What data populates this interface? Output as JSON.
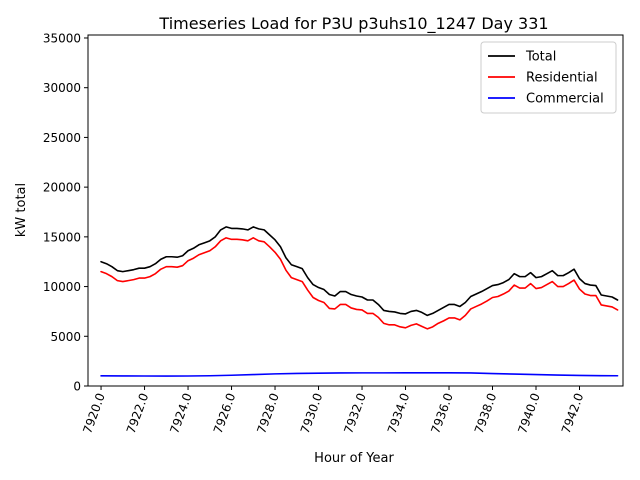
{
  "chart_data": {
    "type": "line",
    "title": "Timeseries Load for P3U p3uhs10_1247  Day 331",
    "xlabel": "Hour of Year",
    "ylabel": "kW total",
    "xlim": [
      7919.4,
      7944.0
    ],
    "ylim": [
      0,
      35300
    ],
    "grid": false,
    "legend_position": "top-right",
    "x_tick_values": [
      7920,
      7922,
      7924,
      7926,
      7928,
      7930,
      7932,
      7934,
      7936,
      7938,
      7940,
      7942
    ],
    "x_tick_labels": [
      "7920.0",
      "7922.0",
      "7924.0",
      "7926.0",
      "7928.0",
      "7930.0",
      "7932.0",
      "7934.0",
      "7936.0",
      "7938.0",
      "7940.0",
      "7942.0"
    ],
    "y_tick_values": [
      0,
      5000,
      10000,
      15000,
      20000,
      25000,
      30000,
      35000
    ],
    "y_tick_labels": [
      "0",
      "5000",
      "10000",
      "15000",
      "20000",
      "25000",
      "30000",
      "35000"
    ],
    "series": [
      {
        "name": "Total",
        "color": "#000000",
        "points": [
          [
            7920.0,
            12500
          ],
          [
            7920.25,
            12300
          ],
          [
            7920.5,
            12000
          ],
          [
            7920.75,
            11600
          ],
          [
            7921.0,
            11500
          ],
          [
            7921.25,
            11600
          ],
          [
            7921.5,
            11700
          ],
          [
            7921.75,
            11850
          ],
          [
            7922.0,
            11850
          ],
          [
            7922.25,
            12000
          ],
          [
            7922.5,
            12300
          ],
          [
            7922.75,
            12750
          ],
          [
            7923.0,
            13000
          ],
          [
            7923.25,
            13000
          ],
          [
            7923.5,
            12950
          ],
          [
            7923.75,
            13100
          ],
          [
            7924.0,
            13600
          ],
          [
            7924.25,
            13850
          ],
          [
            7924.5,
            14200
          ],
          [
            7924.75,
            14400
          ],
          [
            7925.0,
            14600
          ],
          [
            7925.25,
            15000
          ],
          [
            7925.5,
            15700
          ],
          [
            7925.75,
            16000
          ],
          [
            7926.0,
            15850
          ],
          [
            7926.25,
            15850
          ],
          [
            7926.5,
            15800
          ],
          [
            7926.75,
            15700
          ],
          [
            7927.0,
            16000
          ],
          [
            7927.25,
            15800
          ],
          [
            7927.5,
            15700
          ],
          [
            7927.75,
            15200
          ],
          [
            7928.0,
            14700
          ],
          [
            7928.25,
            14000
          ],
          [
            7928.5,
            12900
          ],
          [
            7928.75,
            12200
          ],
          [
            7929.0,
            12000
          ],
          [
            7929.25,
            11800
          ],
          [
            7929.5,
            10900
          ],
          [
            7929.75,
            10200
          ],
          [
            7930.0,
            9900
          ],
          [
            7930.25,
            9700
          ],
          [
            7930.5,
            9200
          ],
          [
            7930.75,
            9050
          ],
          [
            7931.0,
            9500
          ],
          [
            7931.25,
            9500
          ],
          [
            7931.5,
            9200
          ],
          [
            7931.75,
            9050
          ],
          [
            7932.0,
            8950
          ],
          [
            7932.25,
            8650
          ],
          [
            7932.5,
            8650
          ],
          [
            7932.75,
            8200
          ],
          [
            7933.0,
            7600
          ],
          [
            7933.25,
            7500
          ],
          [
            7933.5,
            7450
          ],
          [
            7933.75,
            7300
          ],
          [
            7934.0,
            7250
          ],
          [
            7934.25,
            7500
          ],
          [
            7934.5,
            7600
          ],
          [
            7934.75,
            7400
          ],
          [
            7935.0,
            7100
          ],
          [
            7935.25,
            7300
          ],
          [
            7935.5,
            7600
          ],
          [
            7935.75,
            7900
          ],
          [
            7936.0,
            8200
          ],
          [
            7936.25,
            8200
          ],
          [
            7936.5,
            8000
          ],
          [
            7936.75,
            8400
          ],
          [
            7937.0,
            9000
          ],
          [
            7937.25,
            9250
          ],
          [
            7937.5,
            9500
          ],
          [
            7937.75,
            9800
          ],
          [
            7938.0,
            10100
          ],
          [
            7938.25,
            10200
          ],
          [
            7938.5,
            10400
          ],
          [
            7938.75,
            10700
          ],
          [
            7939.0,
            11300
          ],
          [
            7939.25,
            11000
          ],
          [
            7939.5,
            11000
          ],
          [
            7939.75,
            11400
          ],
          [
            7940.0,
            10900
          ],
          [
            7940.25,
            11000
          ],
          [
            7940.5,
            11300
          ],
          [
            7940.75,
            11600
          ],
          [
            7941.0,
            11100
          ],
          [
            7941.25,
            11100
          ],
          [
            7941.5,
            11400
          ],
          [
            7941.75,
            11750
          ],
          [
            7942.0,
            10800
          ],
          [
            7942.25,
            10300
          ],
          [
            7942.5,
            10150
          ],
          [
            7942.75,
            10100
          ],
          [
            7943.0,
            9150
          ],
          [
            7943.25,
            9050
          ],
          [
            7943.5,
            8950
          ],
          [
            7943.75,
            8650
          ]
        ]
      },
      {
        "name": "Residential",
        "color": "#ff0000",
        "points": [
          [
            7920.0,
            11500
          ],
          [
            7920.25,
            11300
          ],
          [
            7920.5,
            11000
          ],
          [
            7920.75,
            10600
          ],
          [
            7921.0,
            10500
          ],
          [
            7921.25,
            10600
          ],
          [
            7921.5,
            10700
          ],
          [
            7921.75,
            10850
          ],
          [
            7922.0,
            10850
          ],
          [
            7922.25,
            11000
          ],
          [
            7922.5,
            11300
          ],
          [
            7922.75,
            11750
          ],
          [
            7923.0,
            12000
          ],
          [
            7923.25,
            12000
          ],
          [
            7923.5,
            11950
          ],
          [
            7923.75,
            12100
          ],
          [
            7924.0,
            12600
          ],
          [
            7924.25,
            12850
          ],
          [
            7924.5,
            13200
          ],
          [
            7924.75,
            13400
          ],
          [
            7925.0,
            13600
          ],
          [
            7925.25,
            14000
          ],
          [
            7925.5,
            14600
          ],
          [
            7925.75,
            14900
          ],
          [
            7926.0,
            14750
          ],
          [
            7926.25,
            14750
          ],
          [
            7926.5,
            14700
          ],
          [
            7926.75,
            14600
          ],
          [
            7927.0,
            14900
          ],
          [
            7927.25,
            14600
          ],
          [
            7927.5,
            14500
          ],
          [
            7927.75,
            14000
          ],
          [
            7928.0,
            13450
          ],
          [
            7928.25,
            12750
          ],
          [
            7928.5,
            11650
          ],
          [
            7928.75,
            10900
          ],
          [
            7929.0,
            10700
          ],
          [
            7929.25,
            10500
          ],
          [
            7929.5,
            9650
          ],
          [
            7929.75,
            8900
          ],
          [
            7930.0,
            8600
          ],
          [
            7930.25,
            8400
          ],
          [
            7930.5,
            7800
          ],
          [
            7930.75,
            7750
          ],
          [
            7931.0,
            8200
          ],
          [
            7931.25,
            8200
          ],
          [
            7931.5,
            7850
          ],
          [
            7931.75,
            7700
          ],
          [
            7932.0,
            7650
          ],
          [
            7932.25,
            7300
          ],
          [
            7932.5,
            7300
          ],
          [
            7932.75,
            6900
          ],
          [
            7933.0,
            6300
          ],
          [
            7933.25,
            6150
          ],
          [
            7933.5,
            6150
          ],
          [
            7933.75,
            5950
          ],
          [
            7934.0,
            5850
          ],
          [
            7934.25,
            6100
          ],
          [
            7934.5,
            6250
          ],
          [
            7934.75,
            6000
          ],
          [
            7935.0,
            5750
          ],
          [
            7935.25,
            5950
          ],
          [
            7935.5,
            6300
          ],
          [
            7935.75,
            6550
          ],
          [
            7936.0,
            6850
          ],
          [
            7936.25,
            6850
          ],
          [
            7936.5,
            6650
          ],
          [
            7936.75,
            7100
          ],
          [
            7937.0,
            7750
          ],
          [
            7937.25,
            8000
          ],
          [
            7937.5,
            8250
          ],
          [
            7937.75,
            8550
          ],
          [
            7938.0,
            8900
          ],
          [
            7938.25,
            9000
          ],
          [
            7938.5,
            9250
          ],
          [
            7938.75,
            9550
          ],
          [
            7939.0,
            10150
          ],
          [
            7939.25,
            9850
          ],
          [
            7939.5,
            9850
          ],
          [
            7939.75,
            10300
          ],
          [
            7940.0,
            9800
          ],
          [
            7940.25,
            9900
          ],
          [
            7940.5,
            10200
          ],
          [
            7940.75,
            10500
          ],
          [
            7941.0,
            10000
          ],
          [
            7941.25,
            10000
          ],
          [
            7941.5,
            10300
          ],
          [
            7941.75,
            10650
          ],
          [
            7942.0,
            9750
          ],
          [
            7942.25,
            9250
          ],
          [
            7942.5,
            9100
          ],
          [
            7942.75,
            9100
          ],
          [
            7943.0,
            8150
          ],
          [
            7943.25,
            8050
          ],
          [
            7943.5,
            7950
          ],
          [
            7943.75,
            7650
          ]
        ]
      },
      {
        "name": "Commercial",
        "color": "#0000ff",
        "points": [
          [
            7920.0,
            1020
          ],
          [
            7921.0,
            1010
          ],
          [
            7922.0,
            1005
          ],
          [
            7923.0,
            1000
          ],
          [
            7924.0,
            1005
          ],
          [
            7925.0,
            1030
          ],
          [
            7926.0,
            1080
          ],
          [
            7927.0,
            1150
          ],
          [
            7928.0,
            1220
          ],
          [
            7929.0,
            1260
          ],
          [
            7930.0,
            1290
          ],
          [
            7931.0,
            1310
          ],
          [
            7932.0,
            1320
          ],
          [
            7933.0,
            1320
          ],
          [
            7934.0,
            1325
          ],
          [
            7935.0,
            1330
          ],
          [
            7936.0,
            1330
          ],
          [
            7937.0,
            1310
          ],
          [
            7938.0,
            1250
          ],
          [
            7939.0,
            1200
          ],
          [
            7940.0,
            1150
          ],
          [
            7941.0,
            1100
          ],
          [
            7942.0,
            1060
          ],
          [
            7943.0,
            1040
          ],
          [
            7943.75,
            1030
          ]
        ]
      }
    ]
  }
}
